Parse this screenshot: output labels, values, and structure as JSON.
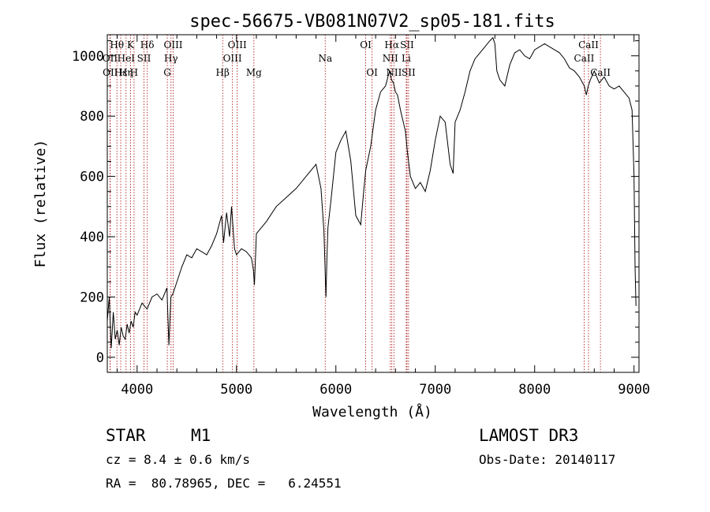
{
  "chart_data": {
    "type": "line",
    "title": "spec-56675-VB081N07V2_sp05-181.fits",
    "xlabel": "Wavelength (Å)",
    "ylabel": "Flux (relative)",
    "xlim": [
      3700,
      9050
    ],
    "ylim": [
      -50,
      1070
    ],
    "xticks": [
      4000,
      5000,
      6000,
      7000,
      8000,
      9000
    ],
    "yticks": [
      0,
      200,
      400,
      600,
      800,
      1000
    ],
    "xtick_labels": [
      "4000",
      "5000",
      "6000",
      "7000",
      "8000",
      "9000"
    ],
    "ytick_labels": [
      "0",
      "200",
      "400",
      "600",
      "800",
      "1000"
    ],
    "line_color": "#000000",
    "marker_color": "#b22222",
    "series": [
      {
        "name": "flux",
        "x": [
          3700,
          3720,
          3740,
          3760,
          3780,
          3800,
          3820,
          3840,
          3860,
          3880,
          3900,
          3920,
          3940,
          3960,
          3980,
          4000,
          4050,
          4100,
          4150,
          4200,
          4250,
          4300,
          4320,
          4340,
          4360,
          4400,
          4450,
          4500,
          4550,
          4600,
          4650,
          4700,
          4750,
          4800,
          4850,
          4870,
          4900,
          4930,
          4950,
          4980,
          5000,
          5050,
          5100,
          5150,
          5170,
          5180,
          5200,
          5250,
          5300,
          5400,
          5500,
          5600,
          5700,
          5800,
          5850,
          5880,
          5900,
          5910,
          5920,
          5950,
          6000,
          6050,
          6100,
          6150,
          6200,
          6250,
          6280,
          6300,
          6350,
          6400,
          6450,
          6500,
          6540,
          6560,
          6580,
          6600,
          6620,
          6650,
          6700,
          6720,
          6750,
          6800,
          6850,
          6900,
          6950,
          7000,
          7050,
          7100,
          7150,
          7180,
          7200,
          7250,
          7300,
          7350,
          7400,
          7450,
          7500,
          7550,
          7580,
          7600,
          7620,
          7650,
          7700,
          7750,
          7800,
          7850,
          7900,
          7950,
          8000,
          8050,
          8100,
          8150,
          8200,
          8250,
          8300,
          8350,
          8400,
          8450,
          8500,
          8520,
          8540,
          8560,
          8600,
          8650,
          8700,
          8750,
          8800,
          8850,
          8900,
          8950,
          8980,
          9000,
          9010,
          9020
        ],
        "y": [
          120,
          200,
          30,
          150,
          60,
          90,
          40,
          100,
          70,
          60,
          110,
          80,
          120,
          100,
          150,
          140,
          180,
          160,
          200,
          210,
          190,
          230,
          40,
          200,
          210,
          250,
          300,
          340,
          330,
          360,
          350,
          340,
          370,
          410,
          470,
          380,
          480,
          400,
          500,
          360,
          340,
          360,
          350,
          330,
          290,
          240,
          410,
          430,
          450,
          500,
          530,
          560,
          600,
          640,
          560,
          420,
          200,
          330,
          430,
          520,
          680,
          720,
          750,
          650,
          470,
          440,
          550,
          620,
          700,
          820,
          880,
          900,
          950,
          920,
          910,
          880,
          870,
          820,
          750,
          680,
          600,
          560,
          580,
          550,
          620,
          720,
          800,
          780,
          640,
          610,
          780,
          820,
          880,
          950,
          990,
          1010,
          1030,
          1050,
          1060,
          1040,
          950,
          920,
          900,
          970,
          1010,
          1020,
          1000,
          990,
          1020,
          1030,
          1040,
          1030,
          1020,
          1010,
          990,
          960,
          950,
          930,
          900,
          870,
          900,
          920,
          950,
          910,
          930,
          900,
          890,
          900,
          880,
          860,
          820,
          600,
          300,
          170
        ]
      }
    ],
    "markers": {
      "top_row": [
        {
          "label": "Hθ",
          "x": 3797
        },
        {
          "label": "K",
          "x": 3934
        },
        {
          "label": "Hδ",
          "x": 4102
        },
        {
          "label": "OIII",
          "x": 4363
        },
        {
          "label": "OIII",
          "x": 5007
        },
        {
          "label": "OI",
          "x": 6300
        },
        {
          "label": "Hα",
          "x": 6563
        },
        {
          "label": "SII",
          "x": 6716
        },
        {
          "label": "CaII",
          "x": 8542
        }
      ],
      "middle_row": [
        {
          "label": "OII",
          "x": 3727
        },
        {
          "label": "HeI",
          "x": 3889
        },
        {
          "label": "SII",
          "x": 4069
        },
        {
          "label": "Hγ",
          "x": 4341
        },
        {
          "label": "OIII",
          "x": 4959
        },
        {
          "label": "Na",
          "x": 5893
        },
        {
          "label": "NII",
          "x": 6548
        },
        {
          "label": "Li",
          "x": 6708
        },
        {
          "label": "CaII",
          "x": 8498
        }
      ],
      "bottom_row": [
        {
          "label": "OII",
          "x": 3730
        },
        {
          "label": "Hε",
          "x": 3835
        },
        {
          "label": "Hη",
          "x": 3889
        },
        {
          "label": "H",
          "x": 3969
        },
        {
          "label": "G",
          "x": 4304
        },
        {
          "label": "Hβ",
          "x": 4861
        },
        {
          "label": "Mg",
          "x": 5175
        },
        {
          "label": "OI",
          "x": 6364
        },
        {
          "label": "NII",
          "x": 6584
        },
        {
          "label": "SII",
          "x": 6731
        },
        {
          "label": "CaII",
          "x": 8662
        }
      ]
    }
  },
  "info": {
    "class_label": "STAR",
    "subclass": "M1",
    "cz": "cz = 8.4 ± 0.6 km/s",
    "radec": "RA =  80.78965, DEC =   6.24551",
    "survey": "LAMOST DR3",
    "obs_date": "Obs-Date: 20140117"
  }
}
